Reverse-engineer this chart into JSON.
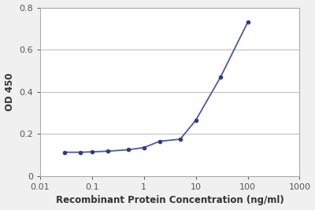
{
  "x": [
    0.03,
    0.06,
    0.1,
    0.2,
    0.5,
    1.0,
    2.0,
    5.0,
    10.0,
    30.0,
    100.0
  ],
  "y": [
    0.113,
    0.113,
    0.115,
    0.118,
    0.125,
    0.135,
    0.165,
    0.175,
    0.265,
    0.47,
    0.73
  ],
  "line_color": "#4a5a9a",
  "marker_color": "#2a3a7a",
  "marker_style": "o",
  "marker_size": 3.5,
  "line_width": 1.3,
  "xlabel": "Recombinant Protein Concentration (ng/ml)",
  "ylabel": "OD 450",
  "xlim": [
    0.01,
    1000
  ],
  "ylim": [
    0,
    0.8
  ],
  "yticks": [
    0,
    0.2,
    0.4,
    0.6,
    0.8
  ],
  "xticks": [
    0.01,
    0.1,
    1,
    10,
    100,
    1000
  ],
  "xticklabels": [
    "0.01",
    "0.1",
    "1",
    "10",
    "100",
    "1000"
  ],
  "xlabel_fontsize": 8.5,
  "ylabel_fontsize": 8.5,
  "tick_fontsize": 8,
  "grid_color": "#c0c0c0",
  "background_color": "#f0f0f0",
  "plot_bg_color": "#ffffff",
  "label_color": "#333333",
  "tick_color": "#555555"
}
